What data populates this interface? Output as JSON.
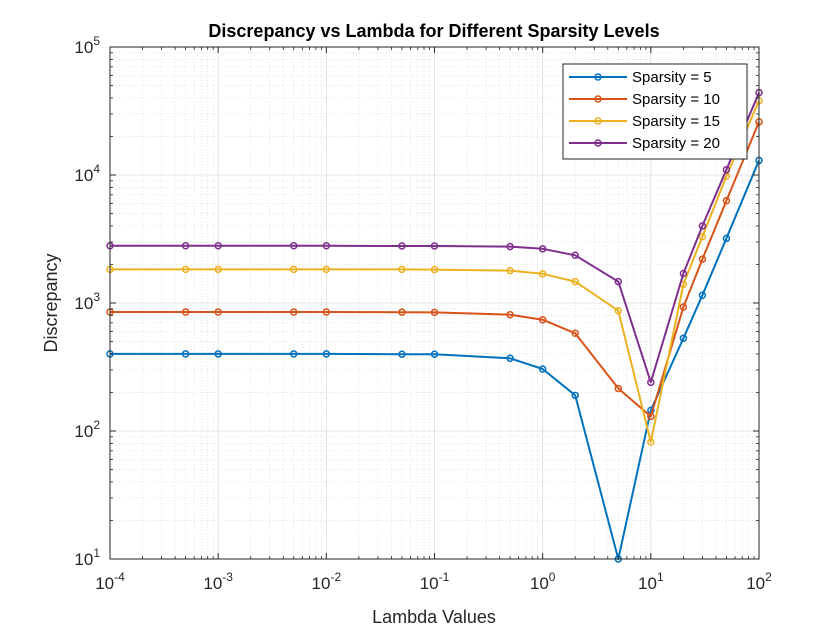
{
  "chart_data": {
    "type": "line",
    "title": "Discrepancy vs Lambda for Different Sparsity Levels",
    "xlabel": "Lambda Values",
    "ylabel": "Discrepancy",
    "xscale": "log",
    "yscale": "log",
    "xlim": [
      0.0001,
      100
    ],
    "ylim": [
      10,
      100000
    ],
    "grid": "on (major and minor)",
    "legend_position": "top-right",
    "x_ticks": [
      {
        "base": "10",
        "exp": "-4",
        "value": 0.0001
      },
      {
        "base": "10",
        "exp": "-3",
        "value": 0.001
      },
      {
        "base": "10",
        "exp": "-2",
        "value": 0.01
      },
      {
        "base": "10",
        "exp": "-1",
        "value": 0.1
      },
      {
        "base": "10",
        "exp": "0",
        "value": 1
      },
      {
        "base": "10",
        "exp": "1",
        "value": 10
      },
      {
        "base": "10",
        "exp": "2",
        "value": 100
      }
    ],
    "y_ticks": [
      {
        "base": "10",
        "exp": "1",
        "value": 10
      },
      {
        "base": "10",
        "exp": "2",
        "value": 100
      },
      {
        "base": "10",
        "exp": "3",
        "value": 1000
      },
      {
        "base": "10",
        "exp": "4",
        "value": 10000
      },
      {
        "base": "10",
        "exp": "5",
        "value": 100000
      }
    ],
    "x": [
      0.0001,
      0.0005,
      0.001,
      0.005,
      0.01,
      0.05,
      0.1,
      0.5,
      1,
      2,
      5,
      10,
      20,
      30,
      50,
      100
    ],
    "series": [
      {
        "name": "Sparsity = 5",
        "color": "#0072BD",
        "values": [
          400,
          400,
          400,
          400,
          400,
          398,
          398,
          370,
          305,
          190,
          10,
          145,
          530,
          1150,
          3200,
          13000
        ]
      },
      {
        "name": "Sparsity = 10",
        "color": "#D95319",
        "values": [
          850,
          850,
          850,
          850,
          850,
          848,
          845,
          810,
          740,
          580,
          215,
          130,
          930,
          2200,
          6300,
          26000
        ]
      },
      {
        "name": "Sparsity = 15",
        "color": "#EDB120",
        "values": [
          1830,
          1830,
          1830,
          1830,
          1830,
          1830,
          1825,
          1790,
          1690,
          1470,
          870,
          82,
          1400,
          3300,
          9800,
          38000
        ]
      },
      {
        "name": "Sparsity = 20",
        "color": "#7E2F8E",
        "values": [
          2800,
          2800,
          2800,
          2800,
          2800,
          2790,
          2790,
          2760,
          2650,
          2360,
          1470,
          240,
          1700,
          4000,
          11000,
          44000
        ]
      }
    ]
  }
}
